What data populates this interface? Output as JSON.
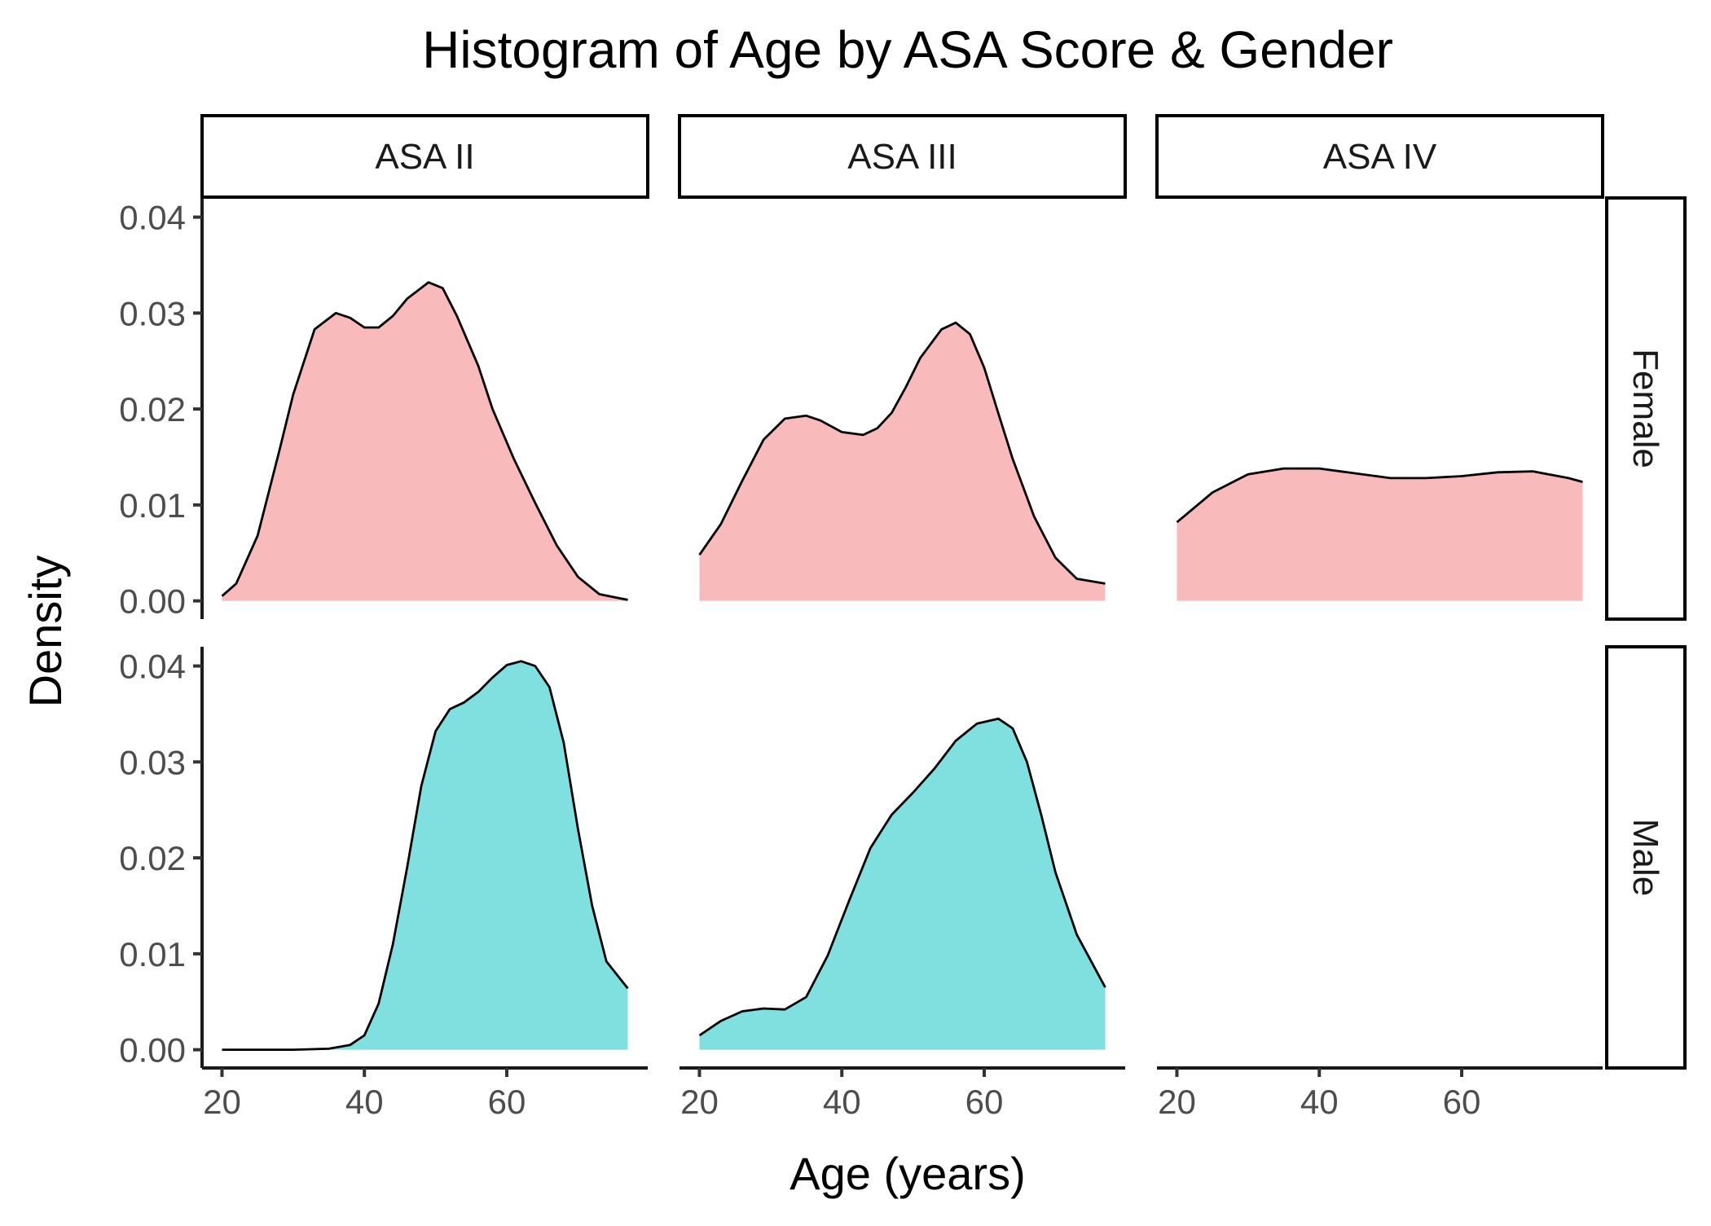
{
  "chart_data": {
    "type": "area",
    "title": "Histogram of Age by ASA Score & Gender",
    "xlabel": "Age (years)",
    "ylabel": "Density",
    "xlim": [
      17.2,
      79.8
    ],
    "ylim": [
      -0.0019,
      0.042
    ],
    "x_ticks": [
      20,
      40,
      60
    ],
    "y_ticks": [
      0.0,
      0.01,
      0.02,
      0.03,
      0.04
    ],
    "x_tick_labels": [
      "20",
      "40",
      "60"
    ],
    "y_tick_labels": [
      "0.00",
      "0.01",
      "0.02",
      "0.03",
      "0.04"
    ],
    "col_facets": [
      "ASA II",
      "ASA III",
      "ASA IV"
    ],
    "row_facets": [
      "Female",
      "Male"
    ],
    "grid": false,
    "legend": "none",
    "colors": {
      "Female": "#F8BABA",
      "Male": "#80E0E0",
      "outline": "#000000"
    },
    "panels": [
      {
        "row": "Female",
        "col": "ASA II",
        "x": [
          20,
          22,
          25,
          28,
          30,
          33,
          36,
          38,
          40,
          42,
          44,
          46,
          49,
          51,
          53,
          56,
          58,
          61,
          64,
          67,
          70,
          73,
          77
        ],
        "y": [
          0.0005,
          0.0018,
          0.0068,
          0.0155,
          0.0215,
          0.0283,
          0.03,
          0.0295,
          0.0285,
          0.0285,
          0.0297,
          0.0315,
          0.0332,
          0.0326,
          0.0297,
          0.0245,
          0.02,
          0.0148,
          0.0102,
          0.0058,
          0.0025,
          0.0007,
          0.0001
        ]
      },
      {
        "row": "Female",
        "col": "ASA III",
        "x": [
          20,
          23,
          26,
          29,
          32,
          35,
          37,
          40,
          43,
          45,
          47,
          49,
          51,
          54,
          56,
          58,
          60,
          62,
          64,
          67,
          70,
          73,
          77
        ],
        "y": [
          0.0048,
          0.008,
          0.0125,
          0.0168,
          0.019,
          0.0193,
          0.0188,
          0.0176,
          0.0173,
          0.018,
          0.0196,
          0.0223,
          0.0253,
          0.0283,
          0.029,
          0.0278,
          0.0243,
          0.0195,
          0.0148,
          0.0088,
          0.0045,
          0.0023,
          0.0018
        ]
      },
      {
        "row": "Female",
        "col": "ASA IV",
        "x": [
          20,
          25,
          30,
          35,
          40,
          45,
          50,
          55,
          60,
          65,
          70,
          75,
          77
        ],
        "y": [
          0.0082,
          0.0113,
          0.0132,
          0.0138,
          0.0138,
          0.0133,
          0.0128,
          0.0128,
          0.013,
          0.0134,
          0.0135,
          0.0128,
          0.0124
        ]
      },
      {
        "row": "Male",
        "col": "ASA II",
        "x": [
          20,
          25,
          30,
          35,
          38,
          40,
          42,
          44,
          46,
          48,
          50,
          52,
          54,
          56,
          58,
          60,
          62,
          64,
          66,
          68,
          70,
          72,
          74,
          77
        ],
        "y": [
          0.0,
          0.0,
          0.0,
          0.0001,
          0.0005,
          0.0015,
          0.0048,
          0.011,
          0.019,
          0.0275,
          0.0332,
          0.0355,
          0.0362,
          0.0373,
          0.0388,
          0.0401,
          0.0405,
          0.04,
          0.0378,
          0.032,
          0.023,
          0.015,
          0.0092,
          0.0064
        ]
      },
      {
        "row": "Male",
        "col": "ASA III",
        "x": [
          20,
          23,
          26,
          29,
          32,
          35,
          38,
          41,
          44,
          47,
          50,
          53,
          56,
          59,
          62,
          64,
          66,
          68,
          70,
          73,
          77
        ],
        "y": [
          0.0015,
          0.003,
          0.004,
          0.0043,
          0.0042,
          0.0055,
          0.0098,
          0.0155,
          0.021,
          0.0245,
          0.0268,
          0.0293,
          0.0322,
          0.034,
          0.0345,
          0.0335,
          0.03,
          0.0245,
          0.0185,
          0.012,
          0.0065
        ]
      },
      {
        "row": "Male",
        "col": "ASA IV",
        "x": [],
        "y": []
      }
    ]
  }
}
